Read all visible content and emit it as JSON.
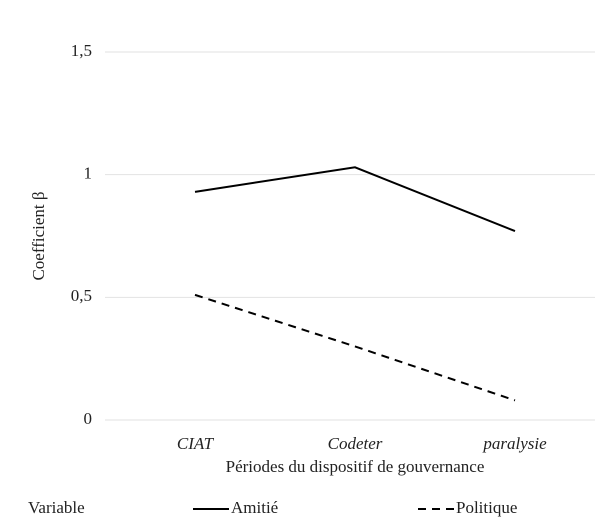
{
  "chart_data": {
    "type": "line",
    "categories": [
      "CIAT",
      "Codeter",
      "paralysie"
    ],
    "series": [
      {
        "name": "Amitié",
        "color": "#000000",
        "line_style": "solid",
        "values": [
          0.93,
          1.03,
          0.77
        ]
      },
      {
        "name": "Politique",
        "color": "#000000",
        "line_style": "dashed",
        "values": [
          0.51,
          0.3,
          0.08
        ]
      }
    ],
    "ylim": [
      0,
      1.5
    ],
    "yticks": [
      0,
      {
        "value": 0.5,
        "label": "0,5"
      },
      1,
      {
        "value": 1.5,
        "label": "1,5"
      }
    ],
    "grid": true,
    "ylabel": "Coefficient β",
    "xlabel": "Périodes du dispositif de gouvernance",
    "legend_title": "Variable",
    "legend": "bottom"
  }
}
